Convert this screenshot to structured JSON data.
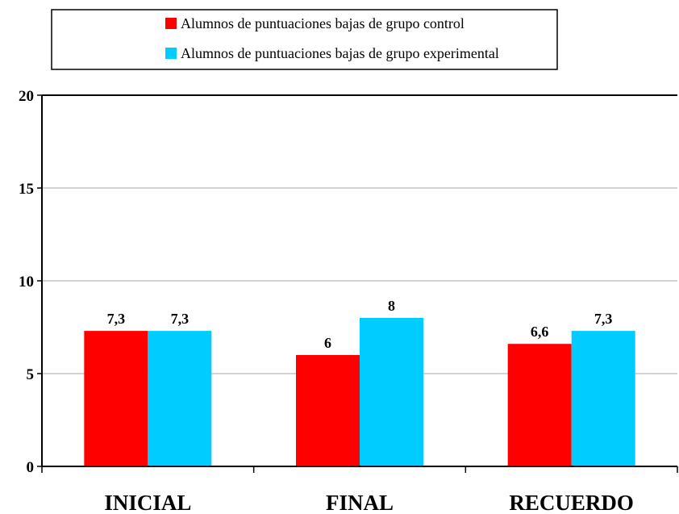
{
  "chart_data": {
    "type": "bar",
    "categories": [
      "INICIAL",
      "FINAL",
      "RECUERDO"
    ],
    "series": [
      {
        "name": "Alumnos de puntuaciones bajas de grupo control",
        "color": "#ff0000",
        "values": [
          7.3,
          6,
          6.6
        ],
        "labels": [
          "7,3",
          "6",
          "6,6"
        ]
      },
      {
        "name": "Alumnos de puntuaciones bajas de grupo experimental",
        "color": "#00ccff",
        "values": [
          7.3,
          8,
          7.3
        ],
        "labels": [
          "7,3",
          "8",
          "7,3"
        ]
      }
    ],
    "ylim": [
      0,
      20
    ],
    "yticks": [
      0,
      5,
      10,
      15,
      20
    ],
    "ytick_labels": [
      "0",
      "5",
      "10",
      "15",
      "20"
    ],
    "grid": true,
    "legend_position": "top"
  }
}
